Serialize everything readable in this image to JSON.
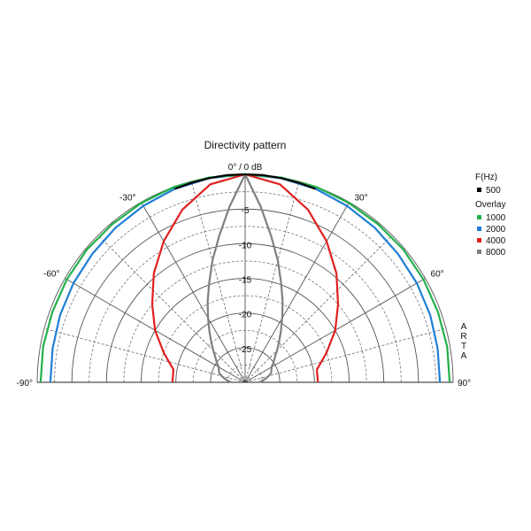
{
  "chart_data": {
    "type": "line",
    "subtype": "polar-half",
    "title": "Directivity pattern",
    "radial_unit": "dB",
    "radial_ticks": [
      {
        "value": 0,
        "label": "0° / 0 dB"
      },
      {
        "value": -5,
        "label": "-5"
      },
      {
        "value": -10,
        "label": "-10"
      },
      {
        "value": -15,
        "label": "-15"
      },
      {
        "value": -20,
        "label": "-20"
      },
      {
        "value": -25,
        "label": "-25"
      }
    ],
    "radial_range": [
      -30,
      0
    ],
    "angle_range": [
      -90,
      90
    ],
    "angle_labels": [
      {
        "angle": -90,
        "label": "-90°"
      },
      {
        "angle": -60,
        "label": "-60°"
      },
      {
        "angle": -30,
        "label": "-30°"
      },
      {
        "angle": 30,
        "label": "30°"
      },
      {
        "angle": 60,
        "label": "60°"
      },
      {
        "angle": 90,
        "label": "90°"
      }
    ],
    "grid": true,
    "legend": {
      "placement": "right",
      "header": "F(Hz)",
      "overlay_header": "Overlay"
    },
    "watermark": "ARTA",
    "series": [
      {
        "name": "500",
        "color": "#000000",
        "angles": [
          -20,
          -15,
          -10,
          -5,
          0,
          5,
          10,
          15,
          20
        ],
        "values": [
          -0.3,
          -0.2,
          -0.1,
          0,
          0,
          0,
          -0.1,
          -0.2,
          -0.3
        ]
      },
      {
        "name": "1000",
        "color": "#22b04a",
        "angles": [
          -90,
          -80,
          -70,
          -60,
          -50,
          -40,
          -30,
          -20,
          -10,
          0,
          10,
          20,
          30,
          40,
          50,
          60,
          70,
          80,
          90
        ],
        "values": [
          -0.5,
          -0.4,
          -0.4,
          -0.3,
          -0.2,
          -0.2,
          -0.1,
          0,
          0,
          0,
          0,
          0,
          -0.1,
          -0.2,
          -0.2,
          -0.3,
          -0.4,
          -0.4,
          -0.5
        ]
      },
      {
        "name": "2000",
        "color": "#1f7fd6",
        "angles": [
          -90,
          -80,
          -70,
          -60,
          -50,
          -40,
          -30,
          -20,
          -10,
          0,
          10,
          20,
          30,
          40,
          50,
          60,
          70,
          80,
          90
        ],
        "values": [
          -1.9,
          -1.8,
          -1.6,
          -1.4,
          -1.2,
          -0.9,
          -0.6,
          -0.3,
          -0.1,
          0,
          -0.1,
          -0.3,
          -0.6,
          -0.9,
          -1.2,
          -1.4,
          -1.6,
          -1.8,
          -1.9
        ]
      },
      {
        "name": "4000",
        "color": "#e02020",
        "angles": [
          -90,
          -80,
          -70,
          -60,
          -50,
          -40,
          -30,
          -20,
          -10,
          0,
          10,
          20,
          30,
          40,
          50,
          60,
          70,
          80,
          90
        ],
        "values": [
          -19.5,
          -19.5,
          -17.5,
          -15,
          -12.5,
          -9.5,
          -6.5,
          -3.5,
          -1,
          0,
          -1,
          -3.5,
          -6.5,
          -9.5,
          -12.5,
          -15,
          -17.5,
          -19.5,
          -19.5
        ]
      },
      {
        "name": "8000",
        "color": "#808080",
        "angles": [
          -90,
          -85,
          -80,
          -75,
          -70,
          -65,
          -60,
          -55,
          -50,
          -45,
          -40,
          -35,
          -30,
          -25,
          -20,
          -15,
          -10,
          -5,
          0,
          5,
          10,
          15,
          20,
          25,
          30,
          35,
          40,
          45,
          50,
          55,
          60,
          65,
          70,
          75,
          80,
          85,
          90
        ],
        "values": [
          -28,
          -27.5,
          -27,
          -26.5,
          -26,
          -25.8,
          -25.6,
          -25,
          -24.4,
          -23.5,
          -22.4,
          -21,
          -19.3,
          -17.2,
          -14.8,
          -11.8,
          -8.5,
          -4.5,
          0,
          -4.5,
          -8.5,
          -11.8,
          -14.8,
          -17.2,
          -19.3,
          -21,
          -22.4,
          -23.5,
          -24.4,
          -25,
          -25.6,
          -25.8,
          -26,
          -26.5,
          -27,
          -27.5,
          -28
        ]
      }
    ]
  }
}
